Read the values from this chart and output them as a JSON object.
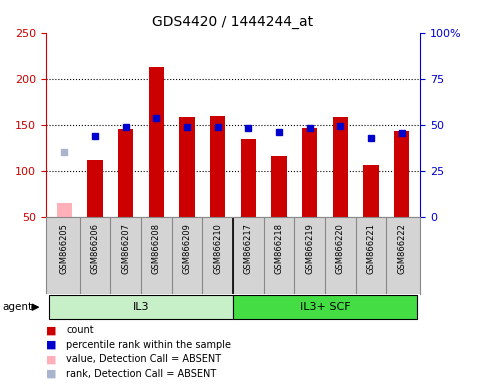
{
  "title": "GDS4420 / 1444244_at",
  "samples": [
    "GSM866205",
    "GSM866206",
    "GSM866207",
    "GSM866208",
    "GSM866209",
    "GSM866210",
    "GSM866217",
    "GSM866218",
    "GSM866219",
    "GSM866220",
    "GSM866221",
    "GSM866222"
  ],
  "count_values": [
    null,
    112,
    145,
    213,
    158,
    160,
    135,
    116,
    146,
    158,
    106,
    143
  ],
  "rank_values": [
    null,
    138,
    148,
    157,
    148,
    148,
    147,
    142,
    146,
    149,
    136,
    141
  ],
  "absent_value": 65,
  "absent_rank": 120,
  "absent_sample_idx": 0,
  "groups": [
    {
      "label": "IL3",
      "start": 0,
      "end": 5,
      "color": "#c8f0c8"
    },
    {
      "label": "IL3+ SCF",
      "start": 6,
      "end": 11,
      "color": "#44dd44"
    }
  ],
  "group_divider": 5.5,
  "ylim_left": [
    50,
    250
  ],
  "ylim_right": [
    0,
    100
  ],
  "yticks_left": [
    50,
    100,
    150,
    200,
    250
  ],
  "yticks_right": [
    0,
    25,
    50,
    75,
    100
  ],
  "ytick_labels_right": [
    "0",
    "25",
    "50",
    "75",
    "100%"
  ],
  "bar_color": "#cc0000",
  "rank_color": "#0000cc",
  "absent_bar_color": "#ffb0b8",
  "absent_rank_color": "#aab4cc",
  "bar_width": 0.5,
  "rank_marker_size": 5,
  "grid_color": "#000000",
  "left_axis_color": "#cc0000",
  "right_axis_color": "#0000cc",
  "plot_bg": "#ffffff",
  "label_area_bg": "#d4d4d4",
  "legend_items": [
    {
      "label": "count",
      "color": "#cc0000"
    },
    {
      "label": "percentile rank within the sample",
      "color": "#0000cc"
    },
    {
      "label": "value, Detection Call = ABSENT",
      "color": "#ffb0b8"
    },
    {
      "label": "rank, Detection Call = ABSENT",
      "color": "#aab4cc"
    }
  ]
}
